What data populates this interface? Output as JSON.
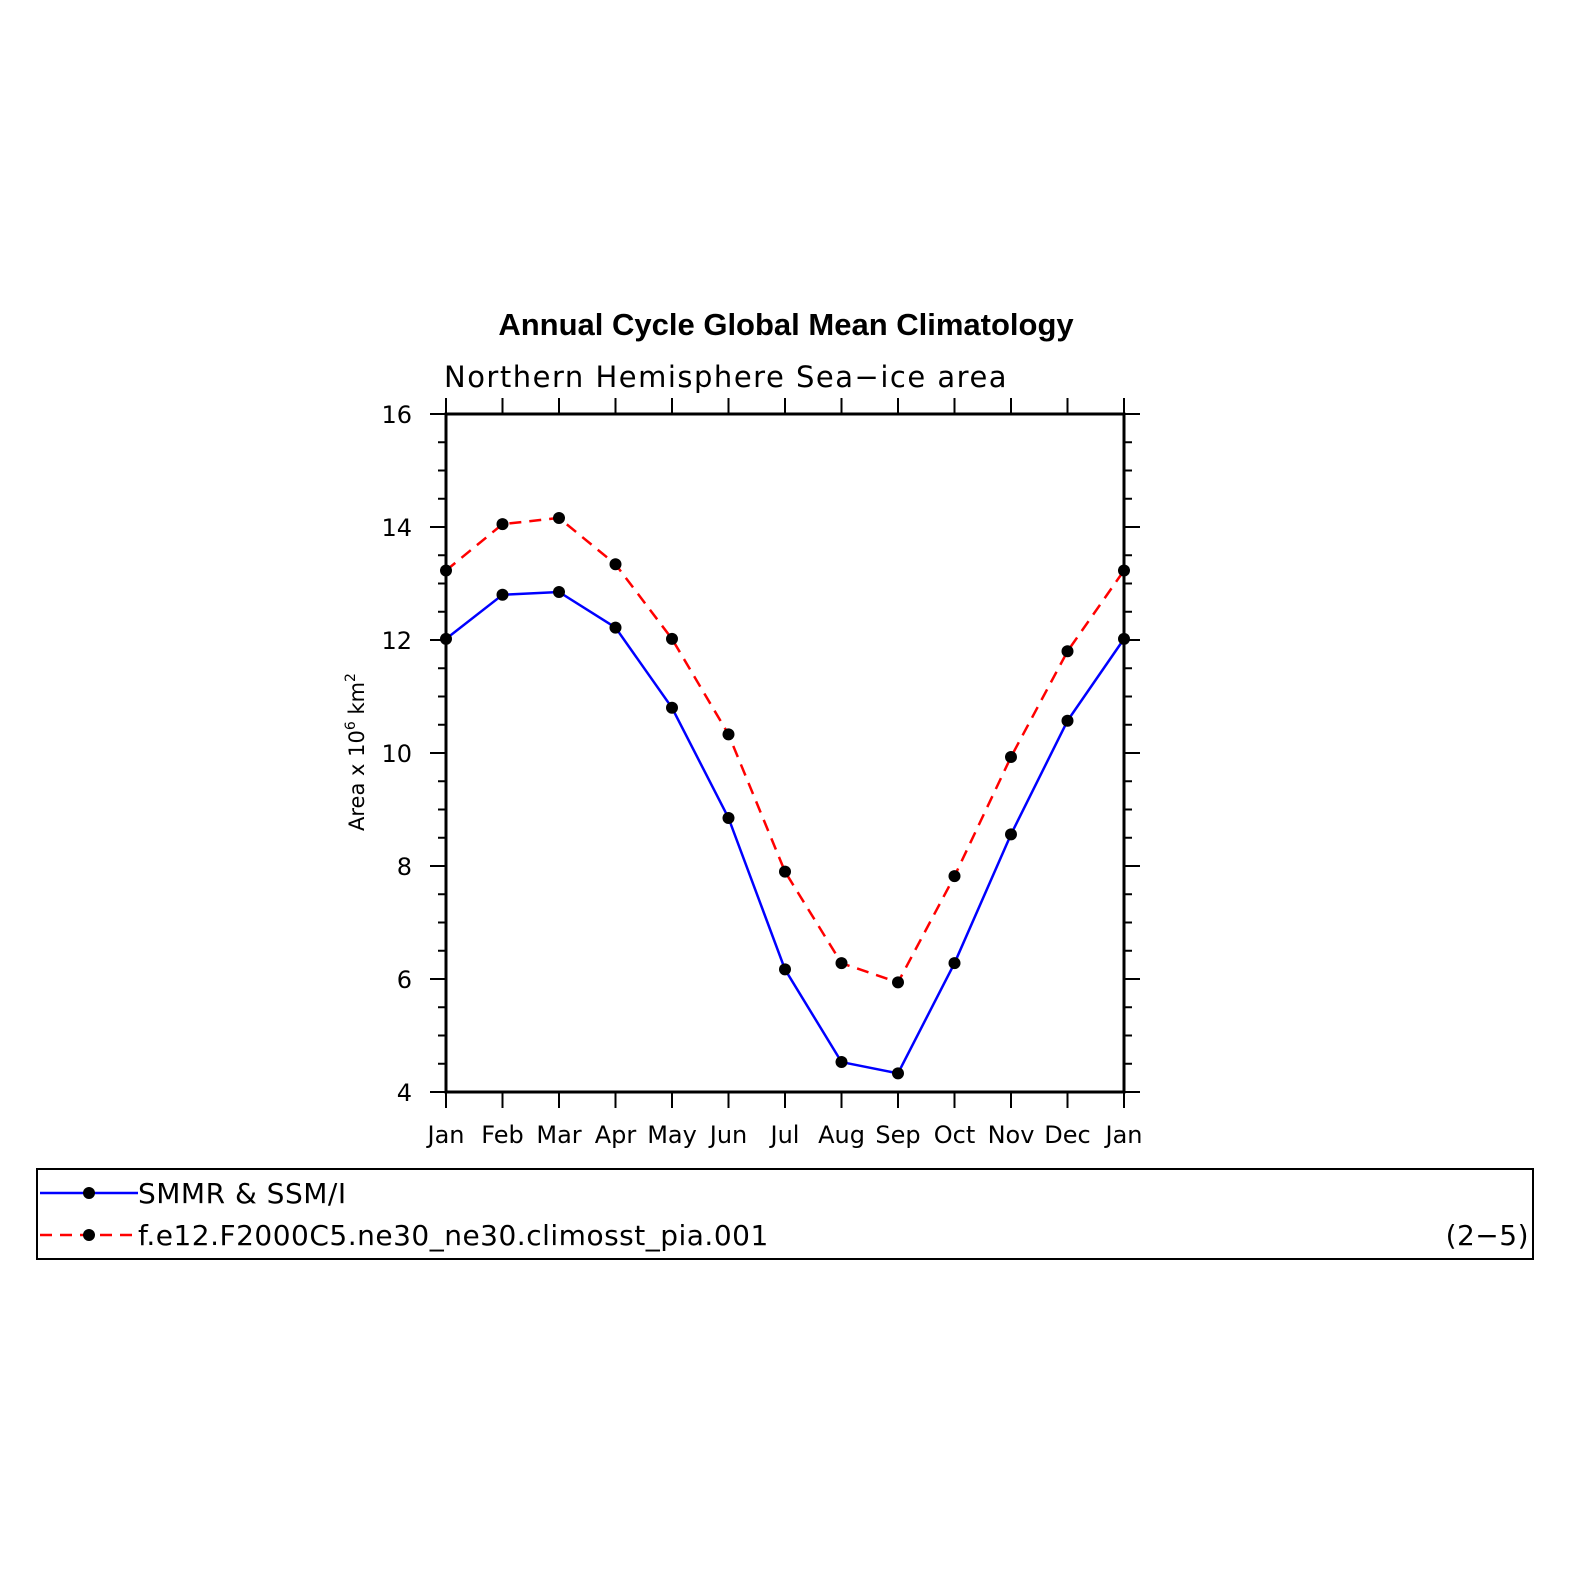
{
  "chart_data": {
    "type": "line",
    "title": "Annual Cycle Global Mean Climatology",
    "subtitle": "Northern Hemisphere Sea−ice area",
    "ylabel": "Area x 10",
    "ylabel_sup1": "6",
    "ylabel_unit": " km",
    "ylabel_sup2": "2",
    "ylim": [
      4,
      16
    ],
    "yticks": [
      4,
      6,
      8,
      10,
      12,
      14,
      16
    ],
    "categories": [
      "Jan",
      "Feb",
      "Mar",
      "Apr",
      "May",
      "Jun",
      "Jul",
      "Aug",
      "Sep",
      "Oct",
      "Nov",
      "Dec",
      "Jan"
    ],
    "grid": false,
    "legend_position": "bottom",
    "series": [
      {
        "name": "SMMR & SSM/I",
        "color": "#0000ff",
        "line_style": "solid",
        "marker": "dot",
        "values": [
          12.02,
          12.8,
          12.85,
          12.22,
          10.8,
          8.85,
          6.17,
          4.53,
          4.33,
          6.28,
          8.56,
          10.57,
          12.02
        ]
      },
      {
        "name": "f.e12.F2000C5.ne30_ne30.climosst_pia.001",
        "color": "#ff0000",
        "line_style": "dashed",
        "marker": "dot",
        "values": [
          13.23,
          14.05,
          14.16,
          13.34,
          12.02,
          10.33,
          7.9,
          6.28,
          5.94,
          7.82,
          9.93,
          11.8,
          13.23
        ]
      }
    ],
    "legend_note": "(2−5)"
  }
}
